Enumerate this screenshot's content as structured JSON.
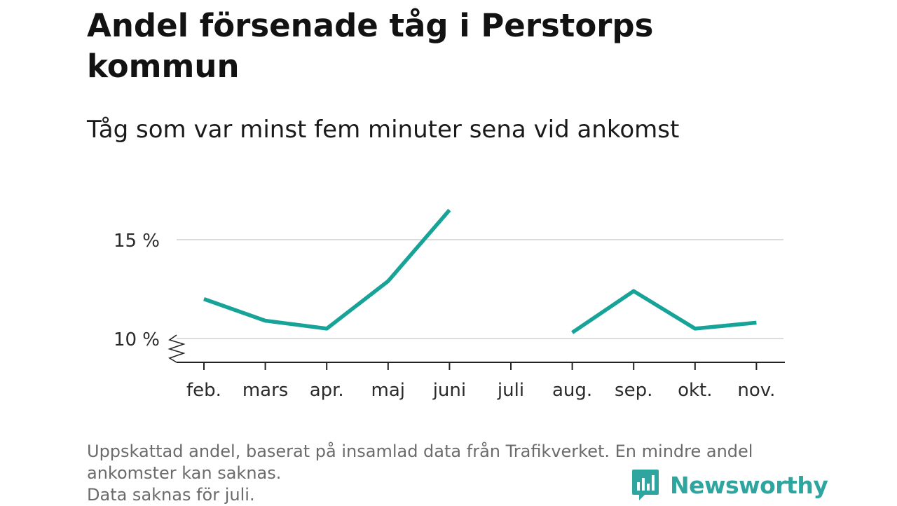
{
  "title": "Andel försenade tåg i Perstorps kommun",
  "subtitle": "Tåg som var minst fem minuter sena vid ankomst",
  "footnote": {
    "line1": "Uppskattad andel, baserat på insamlad data från Trafikverket. En mindre andel",
    "line2": "ankomster kan saknas.",
    "line3": "Data saknas för juli."
  },
  "brand": {
    "name": "Newsworthy",
    "icon": "newsworthy-logo-icon",
    "color": "#2ea59f"
  },
  "chart_data": {
    "type": "line",
    "categories": [
      "feb.",
      "mars",
      "apr.",
      "maj",
      "juni",
      "juli",
      "aug.",
      "sep.",
      "okt.",
      "nov."
    ],
    "series": [
      {
        "values": [
          12.0,
          10.9,
          10.5,
          12.9,
          16.5,
          null,
          10.3,
          12.4,
          10.5,
          10.8
        ],
        "color": "#17a398"
      }
    ],
    "yticks": [
      {
        "value": 10,
        "label": "10 %"
      },
      {
        "value": 15,
        "label": "15 %"
      }
    ],
    "ylim": [
      10,
      16.5
    ],
    "axis_break": true,
    "grid": true,
    "xlabel": "",
    "ylabel": ""
  }
}
